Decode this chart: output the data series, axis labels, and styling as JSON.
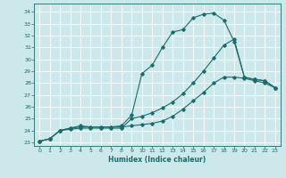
{
  "xlabel": "Humidex (Indice chaleur)",
  "bg_color": "#cce8ea",
  "grid_color": "#ffffff",
  "line_color": "#1a6b6b",
  "xlim": [
    -0.5,
    23.5
  ],
  "ylim": [
    22.7,
    34.7
  ],
  "xticks": [
    0,
    1,
    2,
    3,
    4,
    5,
    6,
    7,
    8,
    9,
    10,
    11,
    12,
    13,
    14,
    15,
    16,
    17,
    18,
    19,
    20,
    21,
    22,
    23
  ],
  "yticks": [
    23,
    24,
    25,
    26,
    27,
    28,
    29,
    30,
    31,
    32,
    33,
    34
  ],
  "line1_x": [
    0,
    1,
    2,
    3,
    4,
    5,
    6,
    7,
    8,
    9,
    10,
    11,
    12,
    13,
    14,
    15,
    16,
    17,
    18,
    19,
    20,
    21,
    22,
    23
  ],
  "line1_y": [
    23.1,
    23.3,
    24.0,
    24.1,
    24.2,
    24.2,
    24.2,
    24.2,
    24.2,
    25.0,
    25.2,
    25.5,
    25.9,
    26.4,
    27.1,
    28.0,
    29.0,
    30.1,
    31.2,
    31.7,
    28.5,
    28.3,
    28.2,
    27.6
  ],
  "line2_x": [
    0,
    1,
    2,
    3,
    4,
    5,
    6,
    7,
    8,
    9,
    10,
    11,
    12,
    13,
    14,
    15,
    16,
    17,
    18,
    19,
    20,
    21,
    22,
    23
  ],
  "line2_y": [
    23.1,
    23.3,
    24.0,
    24.2,
    24.3,
    24.3,
    24.3,
    24.3,
    24.3,
    24.4,
    24.5,
    24.6,
    24.8,
    25.2,
    25.8,
    26.5,
    27.2,
    28.0,
    28.5,
    28.5,
    28.4,
    28.2,
    28.0,
    27.6
  ],
  "line3_x": [
    0,
    1,
    2,
    3,
    4,
    5,
    6,
    7,
    8,
    9,
    10,
    11,
    12,
    13,
    14,
    15,
    16,
    17,
    18,
    19,
    20,
    21,
    22,
    23
  ],
  "line3_y": [
    23.1,
    23.3,
    24.0,
    24.2,
    24.4,
    24.3,
    24.3,
    24.3,
    24.4,
    25.3,
    28.8,
    29.5,
    31.0,
    32.3,
    32.5,
    33.5,
    33.8,
    33.9,
    33.3,
    31.5,
    28.5,
    28.3,
    28.2,
    27.6
  ]
}
